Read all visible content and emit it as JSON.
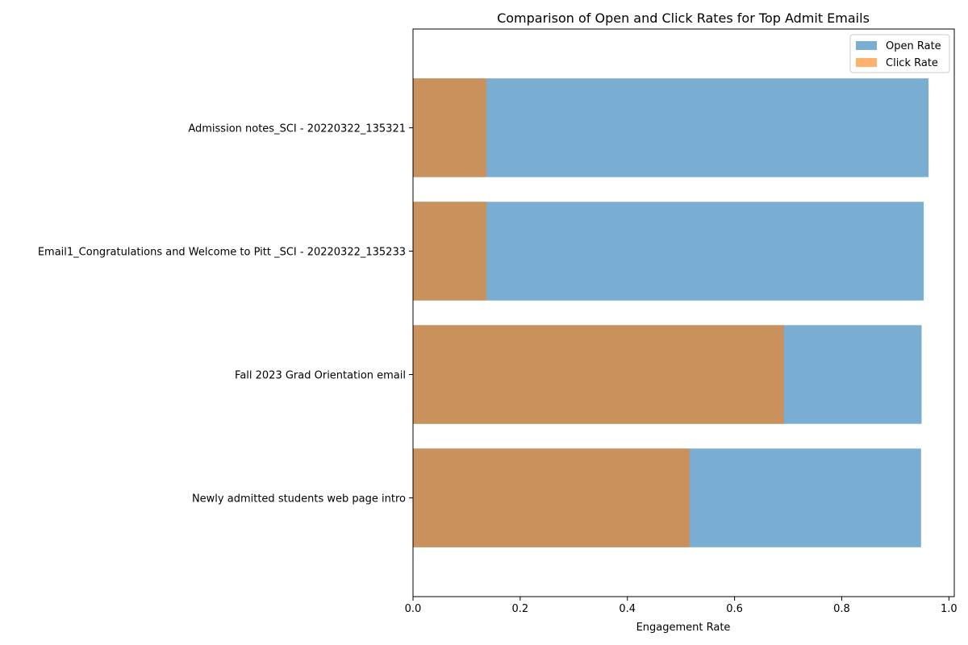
{
  "chart_data": {
    "type": "bar",
    "orientation": "horizontal",
    "title": "Comparison of Open and Click Rates for Top Admit Emails",
    "xlabel": "Engagement Rate",
    "ylabel": "",
    "xlim": [
      0,
      1.01
    ],
    "xticks": [
      0.0,
      0.2,
      0.4,
      0.6,
      0.8,
      1.0
    ],
    "xtick_labels": [
      "0.0",
      "0.2",
      "0.4",
      "0.6",
      "0.8",
      "1.0"
    ],
    "grid": false,
    "legend_position": "top-right",
    "overlay": true,
    "categories": [
      "Admission notes_SCI - 20220322_135321",
      "Email1_Congratulations and Welcome to Pitt _SCI - 20220322_135233",
      "Fall 2023 Grad Orientation email",
      "Newly admitted students web page intro"
    ],
    "series": [
      {
        "name": "Open Rate",
        "color": "#1f77b4",
        "opacity": 0.6,
        "values": [
          0.962,
          0.953,
          0.949,
          0.948
        ]
      },
      {
        "name": "Click Rate",
        "color": "#ff7f0e",
        "opacity": 0.6,
        "values": [
          0.137,
          0.137,
          0.692,
          0.516
        ]
      }
    ]
  }
}
